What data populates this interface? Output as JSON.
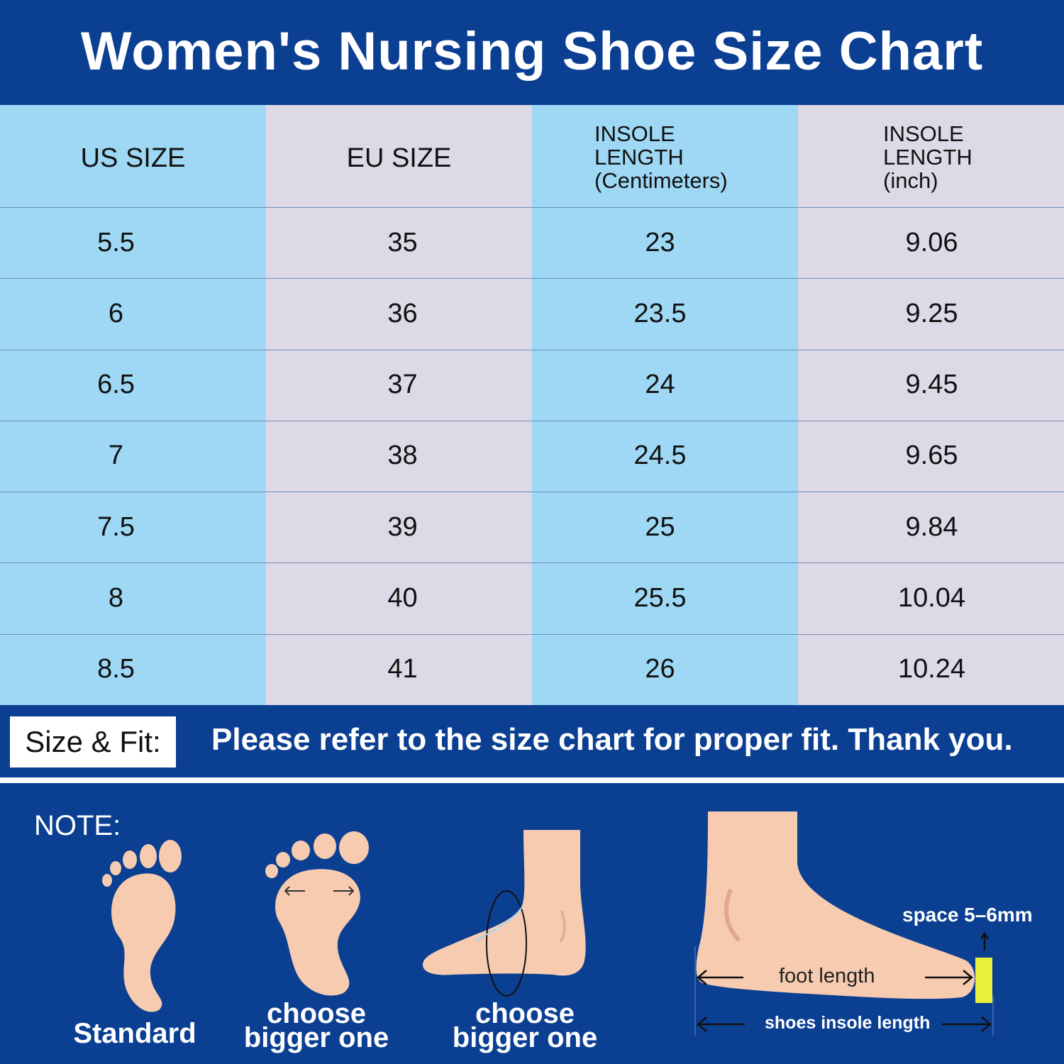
{
  "title": "Women's Nursing Shoe Size Chart",
  "colors": {
    "navy": "#0b3f92",
    "column_blue": "#9ed8f4",
    "column_lavender": "#ddd9e6",
    "skin": "#f6cbb0",
    "marker_yellow": "#e8f03a"
  },
  "chart_data": {
    "type": "table",
    "title": "Women's Nursing Shoe Size Chart",
    "columns": [
      "US SIZE",
      "EU SIZE",
      "INSOLE LENGTH (Centimeters)",
      "INSOLE LENGTH (inch)"
    ],
    "rows": [
      [
        "5.5",
        "35",
        "23",
        "9.06"
      ],
      [
        "6",
        "36",
        "23.5",
        "9.25"
      ],
      [
        "6.5",
        "37",
        "24",
        "9.45"
      ],
      [
        "7",
        "38",
        "24.5",
        "9.65"
      ],
      [
        "7.5",
        "39",
        "25",
        "9.84"
      ],
      [
        "8",
        "40",
        "25.5",
        "10.04"
      ],
      [
        "8.5",
        "41",
        "26",
        "10.24"
      ]
    ]
  },
  "headers": {
    "us": "US SIZE",
    "eu": "EU SIZE",
    "cm": [
      "INSOLE",
      "LENGTH",
      "(Centimeters)"
    ],
    "inch": [
      "INSOLE",
      "LENGTH",
      "(inch)"
    ]
  },
  "fit": {
    "label": "Size & Fit:",
    "text": "Please refer to the size chart for proper fit. Thank you."
  },
  "note": {
    "title": "NOTE:",
    "caption_standard": "Standard",
    "caption_wide": [
      "choose",
      "bigger one"
    ],
    "caption_high_instep": [
      "choose",
      "bigger one"
    ],
    "space_label": "space 5–6mm",
    "foot_length_label": "foot length",
    "insole_length_label": "shoes insole length",
    "icons": [
      "standard-foot-icon",
      "wide-foot-icon",
      "high-instep-foot-icon",
      "foot-side-measure-icon"
    ]
  }
}
